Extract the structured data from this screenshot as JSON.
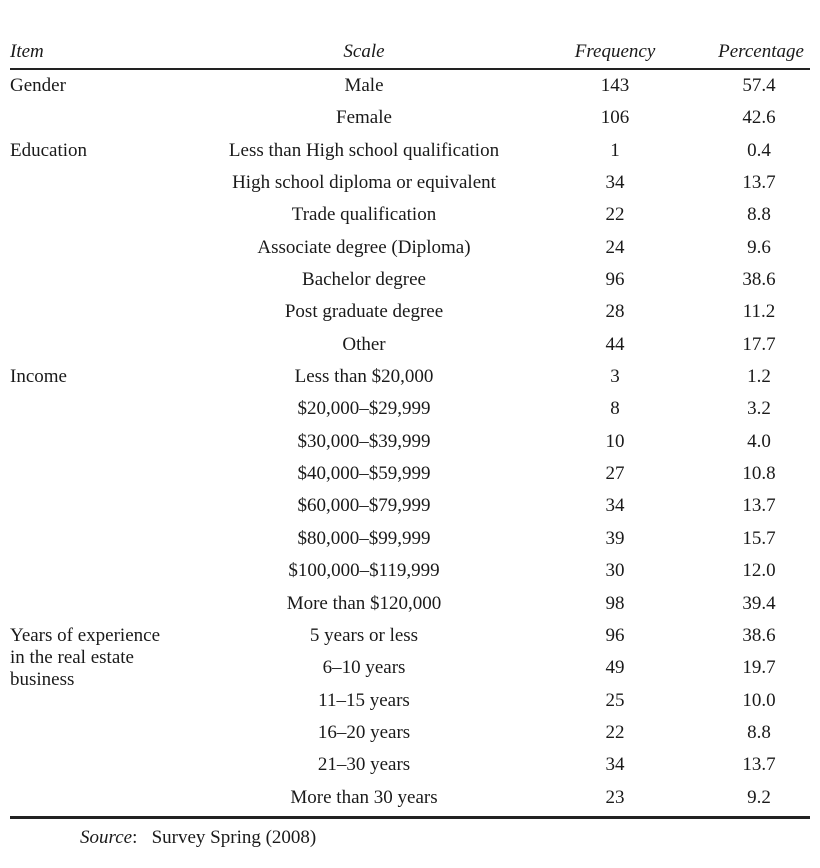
{
  "table": {
    "headers": {
      "item": "Item",
      "scale": "Scale",
      "frequency": "Frequency",
      "percentage": "Percentage"
    },
    "rows": [
      {
        "item": "Gender",
        "scale": "Male",
        "frequency": "143",
        "percentage": "57.4"
      },
      {
        "item": "",
        "scale": "Female",
        "frequency": "106",
        "percentage": "42.6"
      },
      {
        "item": "Education",
        "scale": "Less than High school qualification",
        "frequency": "1",
        "percentage": "0.4"
      },
      {
        "item": "",
        "scale": "High school diploma or equivalent",
        "frequency": "34",
        "percentage": "13.7"
      },
      {
        "item": "",
        "scale": "Trade qualification",
        "frequency": "22",
        "percentage": "8.8"
      },
      {
        "item": "",
        "scale": "Associate degree (Diploma)",
        "frequency": "24",
        "percentage": "9.6"
      },
      {
        "item": "",
        "scale": "Bachelor degree",
        "frequency": "96",
        "percentage": "38.6"
      },
      {
        "item": "",
        "scale": "Post graduate degree",
        "frequency": "28",
        "percentage": "11.2"
      },
      {
        "item": "",
        "scale": "Other",
        "frequency": "44",
        "percentage": "17.7"
      },
      {
        "item": "Income",
        "scale": "Less than $20,000",
        "frequency": "3",
        "percentage": "1.2"
      },
      {
        "item": "",
        "scale": "$20,000–$29,999",
        "frequency": "8",
        "percentage": "3.2"
      },
      {
        "item": "",
        "scale": "$30,000–$39,999",
        "frequency": "10",
        "percentage": "4.0"
      },
      {
        "item": "",
        "scale": "$40,000–$59,999",
        "frequency": "27",
        "percentage": "10.8"
      },
      {
        "item": "",
        "scale": "$60,000–$79,999",
        "frequency": "34",
        "percentage": "13.7"
      },
      {
        "item": "",
        "scale": "$80,000–$99,999",
        "frequency": "39",
        "percentage": "15.7"
      },
      {
        "item": "",
        "scale": "$100,000–$119,999",
        "frequency": "30",
        "percentage": "12.0"
      },
      {
        "item": "",
        "scale": "More than $120,000",
        "frequency": "98",
        "percentage": "39.4"
      },
      {
        "item": "Years of experience\nin the real estate\nbusiness",
        "scale": "5 years or less",
        "frequency": "96",
        "percentage": "38.6"
      },
      {
        "item": "",
        "scale": "6–10 years",
        "frequency": "49",
        "percentage": "19.7"
      },
      {
        "item": "",
        "scale": "11–15 years",
        "frequency": "25",
        "percentage": "10.0"
      },
      {
        "item": "",
        "scale": "16–20 years",
        "frequency": "22",
        "percentage": "8.8"
      },
      {
        "item": "",
        "scale": "21–30 years",
        "frequency": "34",
        "percentage": "13.7"
      },
      {
        "item": "",
        "scale": "More than 30 years",
        "frequency": "23",
        "percentage": "9.2"
      }
    ]
  },
  "source": {
    "label": "Source",
    "text": "Survey Spring (2008)"
  }
}
